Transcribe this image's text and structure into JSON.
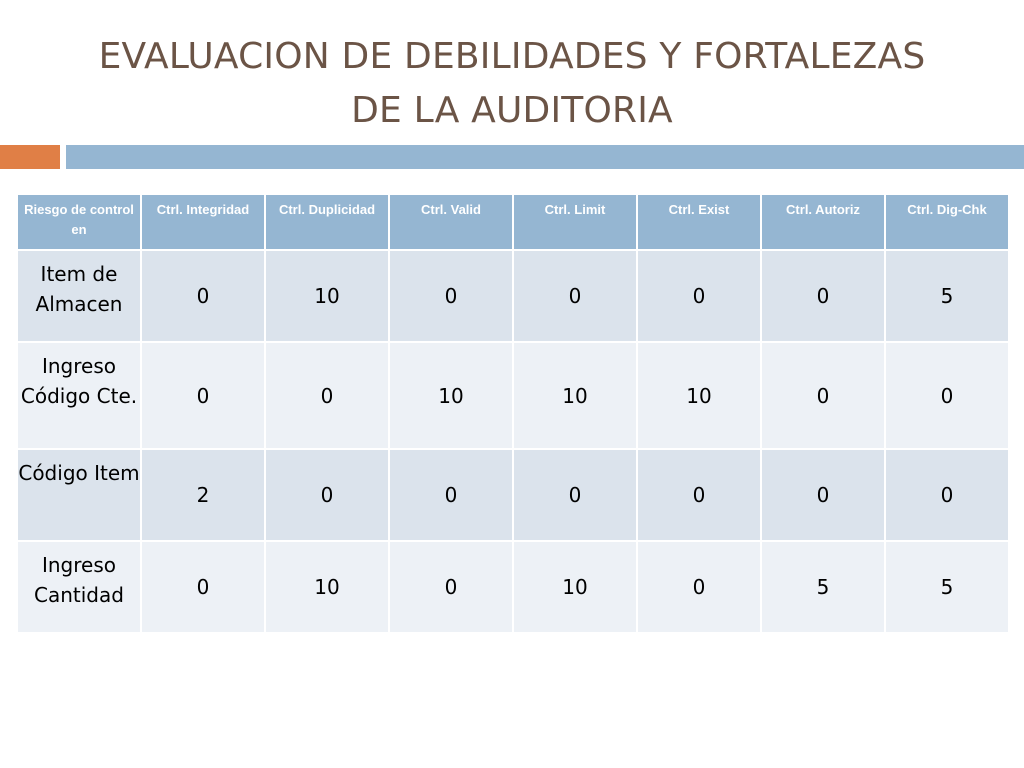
{
  "slide": {
    "title_line1": "EVALUACION DE DEBILIDADES Y FORTALEZAS",
    "title_line2": "DE LA AUDITORIA",
    "colors": {
      "title": "#6b5446",
      "accent_bar": "#e07f46",
      "main_bar": "#95b6d2"
    }
  },
  "table": {
    "headers": [
      "Riesgo de control en",
      "Ctrl. Integridad",
      "Ctrl. Duplicidad",
      "Ctrl. Valid",
      "Ctrl. Limit",
      "Ctrl. Exist",
      "Ctrl. Autoriz",
      "Ctrl. Dig-Chk"
    ],
    "rows": [
      {
        "label": "Item de Almacen",
        "values": [
          "0",
          "10",
          "0",
          "0",
          "0",
          "0",
          "5"
        ]
      },
      {
        "label": "Ingreso Código Cte.",
        "values": [
          "0",
          "0",
          "10",
          "10",
          "10",
          "0",
          "0"
        ]
      },
      {
        "label": "Código Item",
        "values": [
          "2",
          "0",
          "0",
          "0",
          "0",
          "0",
          "0"
        ]
      },
      {
        "label": "Ingreso Cantidad",
        "values": [
          "0",
          "10",
          "0",
          "10",
          "0",
          "5",
          "5"
        ]
      }
    ]
  }
}
